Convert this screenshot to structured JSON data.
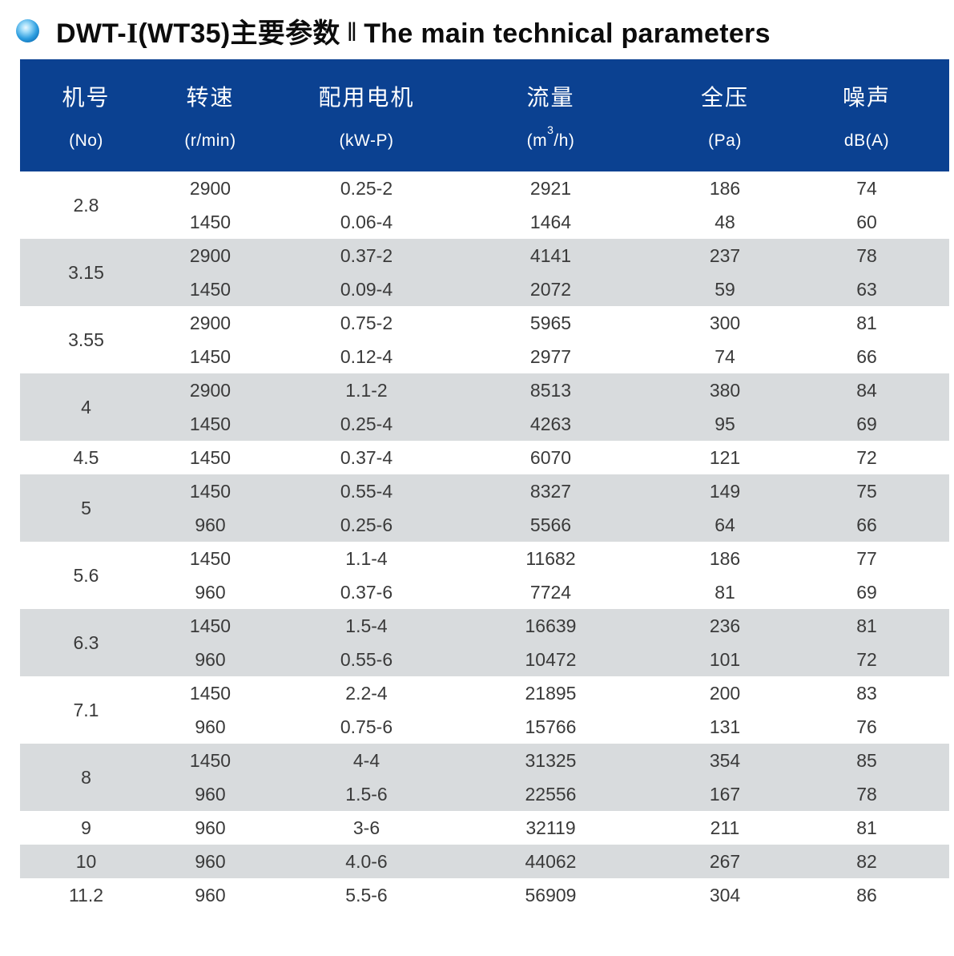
{
  "title": {
    "model_prefix": "DWT-",
    "roman": "I",
    "model_suffix": "(WT35)主要参数",
    "divider": "‖",
    "english": "The main technical parameters"
  },
  "colors": {
    "header_blue": "#0b4191",
    "band_gray": "#d8dbdd",
    "text_dark": "#3a3a3a",
    "bullet_blue": "#1b9de2"
  },
  "icons": {
    "bullet": "blue-sphere-bullet"
  },
  "table": {
    "columns": [
      {
        "cn": "机号",
        "unit": "(No)"
      },
      {
        "cn": "转速",
        "unit": "(r/min)"
      },
      {
        "cn": "配用电机",
        "unit": "(kW-P)"
      },
      {
        "cn": "流量",
        "unit_parts": {
          "pre": "(m",
          "sup": "3",
          "post": "/h)"
        }
      },
      {
        "cn": "全压",
        "unit": "(Pa)"
      },
      {
        "cn": "噪声",
        "unit": "dB(A)"
      }
    ],
    "groups": [
      {
        "no": "2.8",
        "rows": [
          {
            "speed": "2900",
            "motor": "0.25-2",
            "flow": "2921",
            "pressure": "186",
            "noise": "74"
          },
          {
            "speed": "1450",
            "motor": "0.06-4",
            "flow": "1464",
            "pressure": "48",
            "noise": "60"
          }
        ]
      },
      {
        "no": "3.15",
        "rows": [
          {
            "speed": "2900",
            "motor": "0.37-2",
            "flow": "4141",
            "pressure": "237",
            "noise": "78"
          },
          {
            "speed": "1450",
            "motor": "0.09-4",
            "flow": "2072",
            "pressure": "59",
            "noise": "63"
          }
        ]
      },
      {
        "no": "3.55",
        "rows": [
          {
            "speed": "2900",
            "motor": "0.75-2",
            "flow": "5965",
            "pressure": "300",
            "noise": "81"
          },
          {
            "speed": "1450",
            "motor": "0.12-4",
            "flow": "2977",
            "pressure": "74",
            "noise": "66"
          }
        ]
      },
      {
        "no": "4",
        "rows": [
          {
            "speed": "2900",
            "motor": "1.1-2",
            "flow": "8513",
            "pressure": "380",
            "noise": "84"
          },
          {
            "speed": "1450",
            "motor": "0.25-4",
            "flow": "4263",
            "pressure": "95",
            "noise": "69"
          }
        ]
      },
      {
        "no": "4.5",
        "rows": [
          {
            "speed": "1450",
            "motor": "0.37-4",
            "flow": "6070",
            "pressure": "121",
            "noise": "72"
          }
        ]
      },
      {
        "no": "5",
        "rows": [
          {
            "speed": "1450",
            "motor": "0.55-4",
            "flow": "8327",
            "pressure": "149",
            "noise": "75"
          },
          {
            "speed": "960",
            "motor": "0.25-6",
            "flow": "5566",
            "pressure": "64",
            "noise": "66"
          }
        ]
      },
      {
        "no": "5.6",
        "rows": [
          {
            "speed": "1450",
            "motor": "1.1-4",
            "flow": "11682",
            "pressure": "186",
            "noise": "77"
          },
          {
            "speed": "960",
            "motor": "0.37-6",
            "flow": "7724",
            "pressure": "81",
            "noise": "69"
          }
        ]
      },
      {
        "no": "6.3",
        "rows": [
          {
            "speed": "1450",
            "motor": "1.5-4",
            "flow": "16639",
            "pressure": "236",
            "noise": "81"
          },
          {
            "speed": "960",
            "motor": "0.55-6",
            "flow": "10472",
            "pressure": "101",
            "noise": "72"
          }
        ]
      },
      {
        "no": "7.1",
        "rows": [
          {
            "speed": "1450",
            "motor": "2.2-4",
            "flow": "21895",
            "pressure": "200",
            "noise": "83"
          },
          {
            "speed": "960",
            "motor": "0.75-6",
            "flow": "15766",
            "pressure": "131",
            "noise": "76"
          }
        ]
      },
      {
        "no": "8",
        "rows": [
          {
            "speed": "1450",
            "motor": "4-4",
            "flow": "31325",
            "pressure": "354",
            "noise": "85"
          },
          {
            "speed": "960",
            "motor": "1.5-6",
            "flow": "22556",
            "pressure": "167",
            "noise": "78"
          }
        ]
      },
      {
        "no": "9",
        "rows": [
          {
            "speed": "960",
            "motor": "3-6",
            "flow": "32119",
            "pressure": "211",
            "noise": "81"
          }
        ]
      },
      {
        "no": "10",
        "rows": [
          {
            "speed": "960",
            "motor": "4.0-6",
            "flow": "44062",
            "pressure": "267",
            "noise": "82"
          }
        ]
      },
      {
        "no": "11.2",
        "rows": [
          {
            "speed": "960",
            "motor": "5.5-6",
            "flow": "56909",
            "pressure": "304",
            "noise": "86"
          }
        ]
      }
    ]
  }
}
